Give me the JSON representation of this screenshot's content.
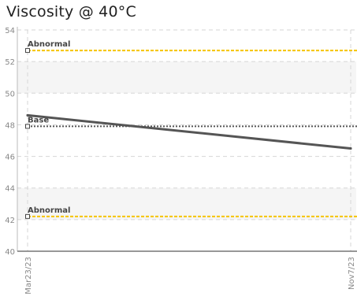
{
  "chart_data": {
    "type": "line",
    "title": "Viscosity @ 40°C",
    "xlabel": "",
    "ylabel": "",
    "x": [
      "Mar23/23",
      "Nov7/23"
    ],
    "x_tick_labels": [
      "Mar23/23",
      "Nov7/23"
    ],
    "ylim": [
      40,
      54
    ],
    "y_ticks": [
      40,
      42,
      44,
      46,
      48,
      50,
      52,
      54
    ],
    "grid": true,
    "series": [
      {
        "values": [
          48.6,
          46.5
        ],
        "color": "#555555"
      }
    ],
    "reference_lines": [
      {
        "label": "Abnormal",
        "value": 52.7,
        "color": "#f5c400",
        "style": "dashed"
      },
      {
        "label": "Base",
        "value": 47.9,
        "color": "#555555",
        "style": "dotted"
      },
      {
        "label": "Abnormal",
        "value": 42.2,
        "color": "#f5c400",
        "style": "dashed"
      }
    ],
    "bands": [
      {
        "from": 42,
        "to": 44,
        "color": "#f5f5f5"
      },
      {
        "from": 50,
        "to": 52,
        "color": "#f5f5f5"
      }
    ]
  }
}
